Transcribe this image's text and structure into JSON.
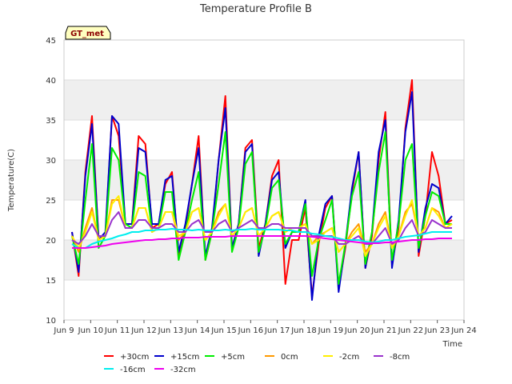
{
  "chart_data": {
    "type": "line",
    "title": "Temperature Profile B",
    "xlabel": "Time",
    "ylabel": "Temperature(C)",
    "badge": "GT_met",
    "ylim": [
      10,
      45
    ],
    "yticks": [
      10,
      15,
      20,
      25,
      30,
      35,
      40,
      45
    ],
    "xlim": [
      "2024-06-09",
      "2024-06-24"
    ],
    "xticks": [
      "Jun 9",
      "Jun 10",
      "Jun 11",
      "Jun 12",
      "Jun 13",
      "Jun 14",
      "Jun 15",
      "Jun 16",
      "Jun 17",
      "Jun 18",
      "Jun 19",
      "Jun 20",
      "Jun 21",
      "Jun 22",
      "Jun 23",
      "Jun 24"
    ],
    "x_start_day": 9.3,
    "x_step_days": 0.25,
    "background_bands": "alternating light gray bands between y gridlines",
    "legend_position": "bottom",
    "series": [
      {
        "name": "+30cm",
        "color": "#ff0000",
        "values": [
          21.0,
          15.5,
          28.5,
          35.5,
          20.0,
          20.5,
          35.5,
          33.0,
          22.0,
          22.0,
          33.0,
          32.0,
          21.5,
          22.0,
          27.0,
          28.5,
          18.0,
          21.5,
          27.0,
          33.0,
          17.5,
          21.0,
          30.0,
          38.0,
          19.0,
          22.0,
          31.5,
          32.5,
          19.0,
          22.0,
          28.0,
          30.0,
          14.5,
          20.0,
          20.0,
          24.0,
          13.0,
          19.5,
          24.0,
          25.5,
          14.0,
          19.0,
          26.0,
          31.0,
          16.5,
          20.5,
          30.0,
          36.0,
          17.0,
          21.5,
          34.0,
          40.0,
          18.0,
          23.0,
          31.0,
          28.0,
          22.0,
          22.5
        ]
      },
      {
        "name": "+15cm",
        "color": "#0000cc",
        "values": [
          21.0,
          16.0,
          28.0,
          34.5,
          20.0,
          21.0,
          35.5,
          34.5,
          22.0,
          22.0,
          31.5,
          31.0,
          22.0,
          22.0,
          27.5,
          28.0,
          18.5,
          22.0,
          27.0,
          31.5,
          18.0,
          21.5,
          30.0,
          36.5,
          19.0,
          22.0,
          31.0,
          32.0,
          18.0,
          22.0,
          27.5,
          28.5,
          19.0,
          21.0,
          21.0,
          25.0,
          12.5,
          20.5,
          24.5,
          25.5,
          13.5,
          19.5,
          26.5,
          31.0,
          16.5,
          21.0,
          31.0,
          35.0,
          16.5,
          22.5,
          33.5,
          38.5,
          18.5,
          24.0,
          27.0,
          26.5,
          22.0,
          23.0
        ]
      },
      {
        "name": "+5cm",
        "color": "#00ee00",
        "values": [
          20.5,
          17.0,
          25.0,
          32.0,
          19.0,
          20.5,
          31.5,
          30.0,
          22.0,
          21.5,
          28.5,
          28.0,
          21.0,
          21.5,
          26.0,
          26.0,
          17.5,
          21.0,
          25.0,
          28.5,
          17.5,
          21.0,
          27.0,
          33.5,
          18.5,
          21.5,
          29.5,
          31.0,
          18.5,
          21.5,
          26.5,
          27.5,
          19.5,
          21.0,
          21.0,
          24.5,
          15.5,
          20.0,
          22.5,
          25.0,
          14.5,
          19.5,
          25.5,
          28.5,
          17.0,
          21.0,
          28.5,
          33.5,
          17.5,
          22.0,
          30.0,
          32.0,
          19.0,
          23.0,
          26.0,
          25.5,
          22.0,
          22.0
        ]
      },
      {
        "name": "0cm",
        "color": "#ff9900",
        "values": [
          20.5,
          18.5,
          21.5,
          24.0,
          20.0,
          20.5,
          25.0,
          25.0,
          21.5,
          21.5,
          24.0,
          24.0,
          21.0,
          21.5,
          23.5,
          23.5,
          20.0,
          21.0,
          23.5,
          24.0,
          20.0,
          21.0,
          23.5,
          24.5,
          20.5,
          21.5,
          23.5,
          24.0,
          20.5,
          21.5,
          23.0,
          23.5,
          21.0,
          21.5,
          21.5,
          22.0,
          19.5,
          20.5,
          21.0,
          21.5,
          18.5,
          19.5,
          21.0,
          22.0,
          18.5,
          19.5,
          22.0,
          23.5,
          19.0,
          20.5,
          23.5,
          24.5,
          20.5,
          21.5,
          24.0,
          23.5,
          21.5,
          22.0
        ]
      },
      {
        "name": "-2cm",
        "color": "#ffee00",
        "values": [
          20.5,
          19.0,
          21.0,
          23.5,
          20.0,
          20.5,
          24.5,
          25.5,
          21.5,
          21.5,
          24.0,
          24.0,
          21.0,
          21.5,
          23.5,
          23.5,
          20.5,
          21.0,
          23.5,
          24.0,
          20.0,
          21.0,
          23.0,
          24.5,
          20.5,
          21.5,
          23.5,
          24.0,
          20.5,
          21.5,
          23.0,
          23.5,
          21.0,
          21.5,
          21.5,
          22.0,
          19.5,
          20.0,
          21.0,
          21.5,
          18.5,
          19.5,
          20.5,
          21.5,
          18.0,
          19.5,
          21.5,
          23.0,
          19.0,
          20.5,
          23.0,
          25.0,
          20.5,
          21.5,
          24.0,
          23.0,
          21.5,
          22.0
        ]
      },
      {
        "name": "-8cm",
        "color": "#9933cc",
        "values": [
          20.0,
          19.5,
          20.5,
          22.0,
          20.5,
          20.5,
          22.5,
          23.5,
          21.5,
          21.5,
          22.5,
          22.5,
          21.5,
          21.5,
          22.0,
          22.0,
          21.0,
          21.0,
          22.0,
          22.5,
          21.0,
          21.0,
          22.0,
          22.5,
          21.0,
          21.5,
          22.0,
          22.5,
          21.5,
          21.5,
          22.0,
          22.0,
          21.5,
          21.5,
          21.5,
          21.5,
          20.5,
          20.5,
          20.5,
          20.5,
          19.5,
          19.5,
          20.0,
          20.5,
          19.5,
          19.5,
          20.5,
          21.5,
          19.5,
          20.0,
          21.5,
          22.5,
          20.5,
          21.0,
          22.5,
          22.0,
          21.5,
          21.5
        ]
      },
      {
        "name": "-16cm",
        "color": "#00eeee",
        "values": [
          19.5,
          19.0,
          19.0,
          19.5,
          19.8,
          20.0,
          20.2,
          20.5,
          20.7,
          21.0,
          21.0,
          21.2,
          21.2,
          21.3,
          21.3,
          21.4,
          21.3,
          21.3,
          21.2,
          21.3,
          21.2,
          21.2,
          21.2,
          21.3,
          21.2,
          21.3,
          21.3,
          21.4,
          21.3,
          21.3,
          21.3,
          21.3,
          21.2,
          21.2,
          21.0,
          21.0,
          20.8,
          20.7,
          20.5,
          20.4,
          20.2,
          20.0,
          20.0,
          20.0,
          19.8,
          19.7,
          19.8,
          20.0,
          20.0,
          20.2,
          20.4,
          20.5,
          20.6,
          20.8,
          21.0,
          21.0,
          21.0,
          21.0
        ]
      },
      {
        "name": "-32cm",
        "color": "#ee00ee",
        "values": [
          19.0,
          19.0,
          19.0,
          19.1,
          19.2,
          19.3,
          19.5,
          19.6,
          19.7,
          19.8,
          19.9,
          20.0,
          20.0,
          20.1,
          20.1,
          20.2,
          20.2,
          20.3,
          20.3,
          20.3,
          20.4,
          20.4,
          20.4,
          20.4,
          20.5,
          20.5,
          20.5,
          20.5,
          20.5,
          20.5,
          20.5,
          20.5,
          20.5,
          20.5,
          20.5,
          20.5,
          20.4,
          20.3,
          20.2,
          20.1,
          20.0,
          19.9,
          19.8,
          19.7,
          19.6,
          19.6,
          19.6,
          19.7,
          19.7,
          19.8,
          19.9,
          20.0,
          20.0,
          20.1,
          20.1,
          20.2,
          20.2,
          20.2
        ]
      }
    ]
  }
}
